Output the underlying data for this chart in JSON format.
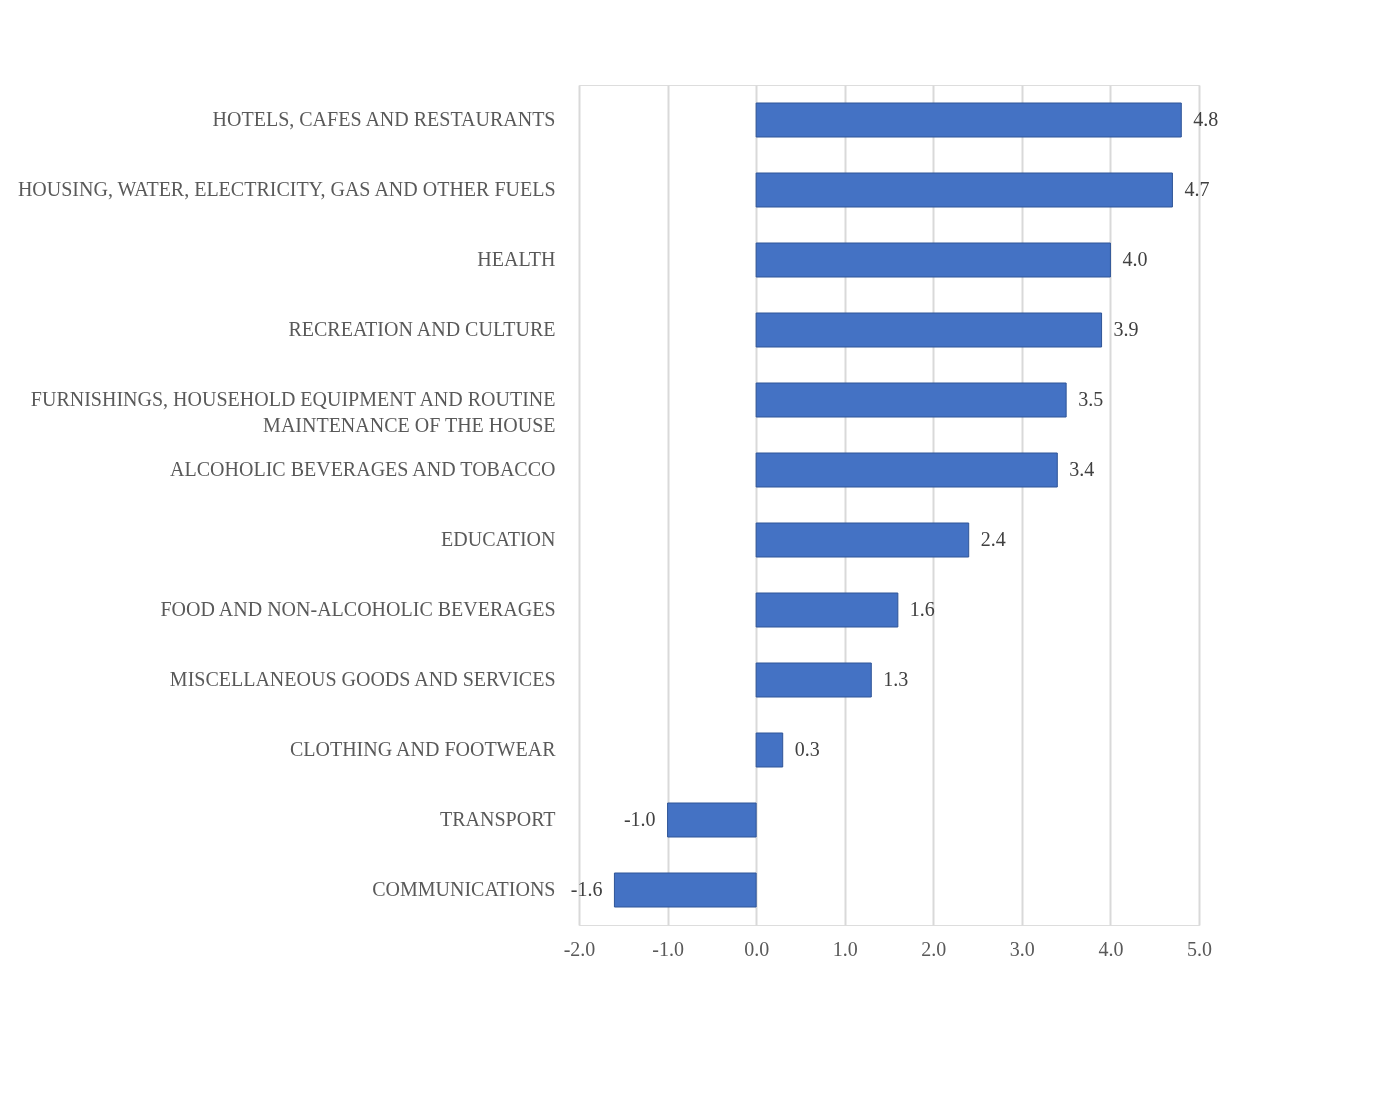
{
  "chart_data": {
    "type": "bar",
    "orientation": "horizontal",
    "categories": [
      "HOTELS, CAFES AND RESTAURANTS",
      "HOUSING, WATER, ELECTRICITY, GAS AND OTHER FUELS",
      "HEALTH",
      "RECREATION AND CULTURE",
      "FURNISHINGS, HOUSEHOLD EQUIPMENT AND ROUTINE\nMAINTENANCE OF  THE HOUSE",
      "ALCOHOLIC BEVERAGES AND TOBACCO",
      "EDUCATION",
      "FOOD AND NON-ALCOHOLIC BEVERAGES",
      "MISCELLANEOUS GOODS AND SERVICES",
      "CLOTHING AND FOOTWEAR",
      "TRANSPORT",
      "COMMUNICATIONS"
    ],
    "values": [
      4.8,
      4.7,
      4.0,
      3.9,
      3.5,
      3.4,
      2.4,
      1.6,
      1.3,
      0.3,
      -1.0,
      -1.6
    ],
    "value_labels": [
      "4.8",
      "4.7",
      "4.0",
      "3.9",
      "3.5",
      "3.4",
      "2.4",
      "1.6",
      "1.3",
      "0.3",
      "-1.0",
      "-1.6"
    ],
    "color": "#4472c4",
    "xlim": [
      -2,
      5
    ],
    "xticks": [
      {
        "value": -2,
        "label": "-2.0"
      },
      {
        "value": -1,
        "label": "-1.0"
      },
      {
        "value": 0,
        "label": "0.0"
      },
      {
        "value": 1,
        "label": "1.0"
      },
      {
        "value": 2,
        "label": "2.0"
      },
      {
        "value": 3,
        "label": "3.0"
      },
      {
        "value": 4,
        "label": "4.0"
      },
      {
        "value": 5,
        "label": "5.0"
      }
    ],
    "grid": "x"
  }
}
